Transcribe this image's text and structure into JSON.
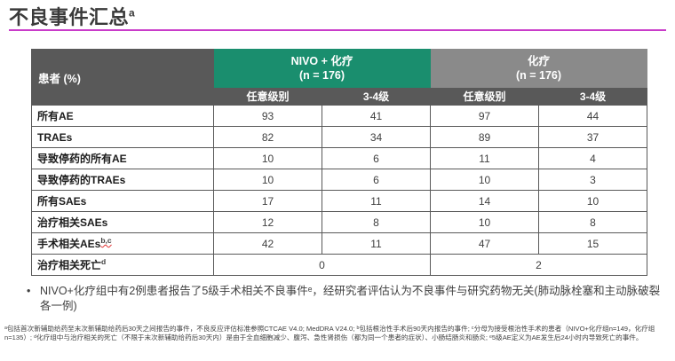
{
  "slide": {
    "title": "不良事件汇总",
    "title_sup": "a"
  },
  "colors": {
    "accent_line": "#c93bc9",
    "header_bg": "#595959",
    "nivo_group_bg": "#1a8e6e",
    "chemo_group_bg": "#8a8a8a",
    "border": "#595959"
  },
  "table": {
    "corner_label": "患者 (%)",
    "groups": [
      {
        "label": "NIVO + 化疗",
        "n": "(n = 176)"
      },
      {
        "label": "化疗",
        "n": "(n = 176)"
      }
    ],
    "subheaders": [
      "任意级别",
      "3-4级",
      "任意级别",
      "3-4级"
    ],
    "rows": [
      {
        "label": "所有AE",
        "values": [
          "93",
          "41",
          "97",
          "44"
        ]
      },
      {
        "label": "TRAEs",
        "values": [
          "82",
          "34",
          "89",
          "37"
        ]
      },
      {
        "label": "导致停药的所有AE",
        "values": [
          "10",
          "6",
          "11",
          "4"
        ]
      },
      {
        "label": "导致停药的TRAEs",
        "values": [
          "10",
          "6",
          "10",
          "3"
        ]
      },
      {
        "label": "所有SAEs",
        "values": [
          "17",
          "11",
          "14",
          "10"
        ]
      },
      {
        "label": "治疗相关SAEs",
        "values": [
          "12",
          "8",
          "10",
          "8"
        ]
      },
      {
        "label": "手术相关AEs",
        "sup": "b,c",
        "sup_wavy": true,
        "values": [
          "42",
          "11",
          "47",
          "15"
        ]
      },
      {
        "label": "治疗相关死亡",
        "sup": "d",
        "merged": true,
        "values": [
          "0",
          "2"
        ]
      }
    ]
  },
  "bullet": {
    "marker": "•",
    "text": "NIVO+化疗组中有2例患者报告了5级手术相关不良事件ᵉ，经研究者评估认为不良事件与研究药物无关(肺动脉栓塞和主动脉破裂各一例)"
  },
  "footnote": "ᵃ包括首次新辅助给药至末次新辅助给药后30天之间报告的事件，不良反应评估标准参照CTCAE V4.0; MedDRA V24.0; ᵇ包括根治性手术后90天内报告的事件; ᶜ分母为接受根治性手术的患者（NIVO+化疗组n=149，化疗组n=135）; ᵈ化疗组中与治疗相关的死亡（不限于末次新辅助给药后30天内）是由于全血细胞减少、腹泻、急性肾损伤（都为同一个患者的症状）、小肠结肠炎和肠炎; ᵉ5级AE定义为AE发生后24小时内导致死亡的事件。"
}
